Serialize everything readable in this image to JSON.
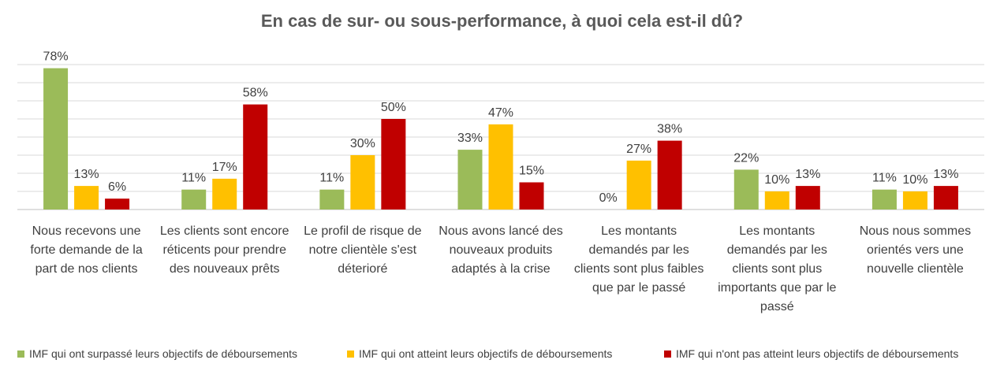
{
  "chart_data": {
    "type": "bar",
    "title": "En cas de sur- ou sous-performance, à quoi cela est-il dû?",
    "categories": [
      "Nous recevons une forte demande de la part de nos clients",
      "Les clients sont encore réticents pour prendre des nouveaux prêts",
      "Le profil de risque de notre clientèle s'est déterioré",
      "Nous avons lancé des nouveaux produits adaptés à la crise",
      "Les montants demandés par les clients sont plus faibles que par le passé",
      "Les montants demandés par les clients sont plus importants que par le passé",
      "Nous nous sommes orientés vers une nouvelle clientèle"
    ],
    "series": [
      {
        "name": "IMF qui ont surpassé leurs objectifs de déboursements",
        "color": "#9BBB59",
        "values": [
          78,
          11,
          11,
          33,
          0,
          22,
          11
        ]
      },
      {
        "name": "IMF qui ont atteint leurs objectifs de déboursements",
        "color": "#FFC000",
        "values": [
          13,
          17,
          30,
          47,
          27,
          10,
          10
        ]
      },
      {
        "name": "IMF qui n'ont pas atteint leurs objectifs de déboursements",
        "color": "#C00000",
        "values": [
          6,
          58,
          50,
          15,
          38,
          13,
          13
        ]
      }
    ],
    "value_suffix": "%",
    "ylim": [
      0,
      80
    ],
    "grid": true,
    "legend_position": "bottom"
  }
}
